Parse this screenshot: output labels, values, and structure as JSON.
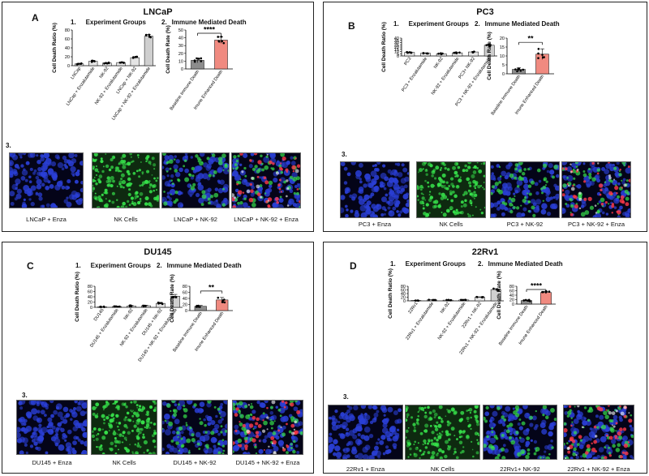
{
  "labels": {
    "section1": "1.",
    "section2": "2.",
    "section3": "3.",
    "experiment_groups": "Experiment Groups",
    "immune_death": "Immune Mediated Death",
    "y_ratio": "Cell Death Ratio (%)",
    "y_rate": "Cell Death Rate (%)"
  },
  "panels": [
    {
      "letter": "A",
      "title": "LNCaP",
      "chart_data": [
        {
          "type": "bar",
          "title": "Experiment Groups",
          "ylabel": "Cell Death Ratio (%)",
          "ylim": [
            0,
            80
          ],
          "yticks": [
            0,
            20,
            40,
            60,
            80
          ],
          "categories": [
            "LNCap",
            "LNCap + Enzalutamide",
            "NK-92",
            "NK-92 + Enzalutamide",
            "LNCap + NK-92",
            "LNCap + NK-92 + Enzalutamide"
          ],
          "values": [
            4,
            10,
            6,
            7,
            18,
            66
          ],
          "errors": [
            1,
            2,
            1,
            1,
            2,
            4
          ]
        },
        {
          "type": "bar",
          "title": "Immune Mediated Death",
          "ylabel": "Cell Death Rate (%)",
          "ylim": [
            0,
            50
          ],
          "yticks": [
            0,
            10,
            20,
            30,
            40,
            50
          ],
          "categories": [
            "Baseline Immune Death",
            "Imune Enhanced Death"
          ],
          "values": [
            11,
            37
          ],
          "errors": [
            3,
            4
          ],
          "significance": "****",
          "colors": [
            "#8c8c8c",
            "#f08a80"
          ]
        }
      ],
      "images": [
        {
          "caption": "LNCaP + Enza"
        },
        {
          "caption": "NK Cells"
        },
        {
          "caption": "LNCaP + NK-92"
        },
        {
          "caption": "LNCaP + NK-92 + Enza"
        }
      ]
    },
    {
      "letter": "B",
      "title": "PC3",
      "chart_data": [
        {
          "type": "bar",
          "title": "Experiment Groups",
          "ylabel": "Cell Death Ratio (%)",
          "ylim": [
            0,
            40
          ],
          "yticks": [
            0,
            5,
            10,
            15,
            20,
            25,
            30,
            35,
            40
          ],
          "categories": [
            "PC3",
            "PC3 + Enzalutamide",
            "NK-92",
            "NK-92 + Enzalutamide",
            "PC3+ NK-92",
            "PC3 + NK-92 + Enzalutamide"
          ],
          "values": [
            8,
            6,
            5,
            7,
            9,
            24
          ],
          "errors": [
            1,
            1,
            1,
            1,
            1,
            2
          ]
        },
        {
          "type": "bar",
          "title": "Immune Mediated Death",
          "ylabel": "Cell Death Rate (%)",
          "ylim": [
            0,
            20
          ],
          "yticks": [
            0,
            5,
            10,
            15,
            20
          ],
          "categories": [
            "Baseline Immune Death",
            "Imune Enhanced Death"
          ],
          "values": [
            2.5,
            11
          ],
          "errors": [
            1,
            3
          ],
          "significance": "**",
          "colors": [
            "#8c8c8c",
            "#f08a80"
          ]
        }
      ],
      "images": [
        {
          "caption": "PC3 + Enza"
        },
        {
          "caption": "NK Cells"
        },
        {
          "caption": "PC3 + NK-92"
        },
        {
          "caption": "PC3 + NK-92 + Enza"
        }
      ]
    },
    {
      "letter": "C",
      "title": "DU145",
      "chart_data": [
        {
          "type": "bar",
          "title": "Experiment Groups",
          "ylabel": "Cell Death Ratio (%)",
          "ylim": [
            0,
            80
          ],
          "yticks": [
            0,
            20,
            40,
            60,
            80
          ],
          "categories": [
            "DU145",
            "DU145 + Enzalutamide",
            "NK-92",
            "NK-92 + Enzalutamide",
            "DU145 + NK-92",
            "DU145 + NK-92 + Enzalutamida"
          ],
          "values": [
            2,
            3,
            5,
            6,
            15,
            42
          ],
          "errors": [
            1,
            1,
            2,
            2,
            3,
            7
          ]
        },
        {
          "type": "bar",
          "title": "Immune Mediated Death",
          "ylabel": "Cell Death Rate (%)",
          "ylim": [
            0,
            80
          ],
          "yticks": [
            0,
            20,
            40,
            60,
            80
          ],
          "categories": [
            "Baseline Immune Death",
            "Imune Enhanced Death"
          ],
          "values": [
            14,
            35
          ],
          "errors": [
            3,
            8
          ],
          "significance": "**",
          "colors": [
            "#8c8c8c",
            "#f08a80"
          ]
        }
      ],
      "images": [
        {
          "caption": "DU145 + Enza"
        },
        {
          "caption": "NK Cells"
        },
        {
          "caption": "DU145 + NK-92"
        },
        {
          "caption": "DU145 + NK-92 + Enza"
        }
      ]
    },
    {
      "letter": "D",
      "title": "22Rv1",
      "chart_data": [
        {
          "type": "bar",
          "title": "Experiment Groups",
          "ylabel": "Cell Death Ratio (%)",
          "ylim": [
            0,
            80
          ],
          "yticks": [
            0,
            20,
            40,
            60,
            80
          ],
          "categories": [
            "22Rv1",
            "22Rv1 + Enzalutamide",
            "NK-92",
            "NK-92 + Enzalutamide",
            "22Rv1 + NK-92",
            "22Rv1 + NK-92 + Enzalutamide"
          ],
          "values": [
            2,
            5,
            4,
            5,
            20,
            62
          ],
          "errors": [
            1,
            1,
            1,
            1,
            2,
            5
          ]
        },
        {
          "type": "bar",
          "title": "Immune Mediated Death",
          "ylabel": "Cell Death Rate (%)",
          "ylim": [
            0,
            80
          ],
          "yticks": [
            0,
            20,
            40,
            60,
            80
          ],
          "categories": [
            "Baseline Immune Death",
            "Imune Enhanced Death"
          ],
          "values": [
            16,
            52
          ],
          "errors": [
            3,
            5
          ],
          "significance": "****",
          "colors": [
            "#8c8c8c",
            "#f08a80"
          ]
        }
      ],
      "images": [
        {
          "caption": "22Rv1 + Enza"
        },
        {
          "caption": "NK Cells"
        },
        {
          "caption": "22Rv1+ NK-92"
        },
        {
          "caption": "22Rv1 + NK-92 + Enza"
        }
      ]
    }
  ],
  "colors": {
    "bar_light": "#e4e4e4",
    "bar_last": "#cfcfcf",
    "baseline": "#8c8c8c",
    "enhanced": "#f08a80",
    "nucleus_blue": "#2a3fd6",
    "nk_green": "#36e04a",
    "dead_red": "#ff3a48"
  }
}
